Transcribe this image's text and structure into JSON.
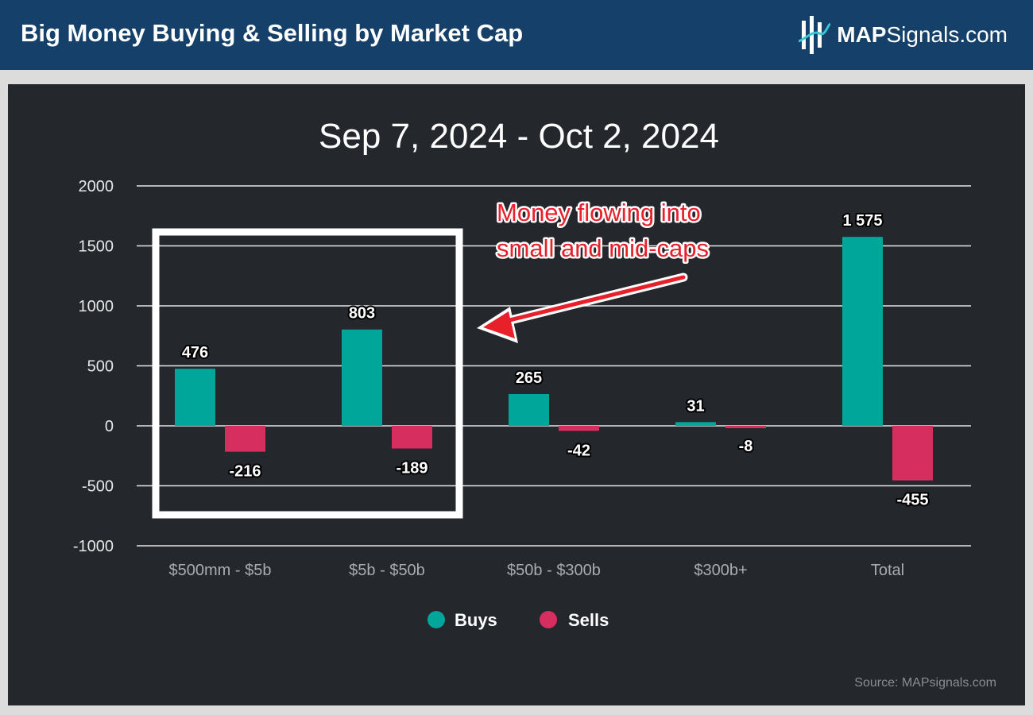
{
  "header": {
    "title": "Big Money Buying & Selling by Market Cap",
    "brand_strong": "MAP",
    "brand_rest": "Signals.com"
  },
  "annotation": {
    "line1": "Money flowing into",
    "line2": "small and mid-caps"
  },
  "source": "Source: MAPsignals.com",
  "colors": {
    "buys": "#00a69a",
    "sells": "#d62e5e",
    "annotation": "#e8202a",
    "header_bg": "#14406a",
    "panel_bg": "#24272c"
  },
  "chart_data": {
    "type": "bar",
    "title": "Sep 7, 2024 - Oct 2, 2024",
    "categories": [
      "$500mm - $5b",
      "$5b - $50b",
      "$50b - $300b",
      "$300b+",
      "Total"
    ],
    "series": [
      {
        "name": "Buys",
        "values": [
          476,
          803,
          265,
          31,
          1575
        ],
        "labels": [
          "476",
          "803",
          "265",
          "31",
          "1 575"
        ]
      },
      {
        "name": "Sells",
        "values": [
          -216,
          -189,
          -42,
          -8,
          -455
        ],
        "labels": [
          "-216",
          "-189",
          "-42",
          "-8",
          "-455"
        ]
      }
    ],
    "ylim": [
      -1000,
      2000
    ],
    "yticks": [
      2000,
      1500,
      1000,
      500,
      0,
      -500,
      -1000
    ],
    "xlabel": "",
    "ylabel": "",
    "grid": true,
    "legend_position": "bottom-center"
  }
}
